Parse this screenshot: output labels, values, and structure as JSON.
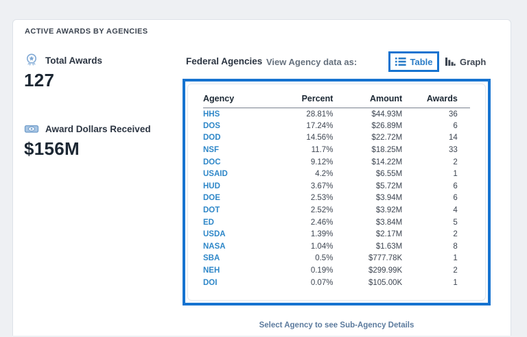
{
  "page": {
    "section_title": "ACTIVE AWARDS BY AGENCIES",
    "hint": "Select Agency to see Sub-Agency Details"
  },
  "stats": {
    "total_awards": {
      "label": "Total Awards",
      "value": "127",
      "icon": "medal-icon"
    },
    "award_dollars": {
      "label": "Award Dollars Received",
      "value": "$156M",
      "icon": "money-icon"
    }
  },
  "panel": {
    "title": "Federal Agencies",
    "view_label": "View Agency data as:",
    "view_options": [
      {
        "label": "Table",
        "icon": "list-icon",
        "selected": true
      },
      {
        "label": "Graph",
        "icon": "bar-chart-icon",
        "selected": false
      }
    ]
  },
  "colors": {
    "accent_blue": "#1673d0",
    "link_blue": "#2e87c8",
    "dark_text": "#2b3441",
    "muted_text": "#65707d",
    "hint_text": "#5b7a9d",
    "page_bg": "#eef0f3"
  },
  "chart_data": {
    "type": "table",
    "columns": [
      "Agency",
      "Percent",
      "Amount",
      "Awards"
    ],
    "rows": [
      {
        "agency": "HHS",
        "percent": "28.81%",
        "amount": "$44.93M",
        "awards": "36"
      },
      {
        "agency": "DOS",
        "percent": "17.24%",
        "amount": "$26.89M",
        "awards": "6"
      },
      {
        "agency": "DOD",
        "percent": "14.56%",
        "amount": "$22.72M",
        "awards": "14"
      },
      {
        "agency": "NSF",
        "percent": "11.7%",
        "amount": "$18.25M",
        "awards": "33"
      },
      {
        "agency": "DOC",
        "percent": "9.12%",
        "amount": "$14.22M",
        "awards": "2"
      },
      {
        "agency": "USAID",
        "percent": "4.2%",
        "amount": "$6.55M",
        "awards": "1"
      },
      {
        "agency": "HUD",
        "percent": "3.67%",
        "amount": "$5.72M",
        "awards": "6"
      },
      {
        "agency": "DOE",
        "percent": "2.53%",
        "amount": "$3.94M",
        "awards": "6"
      },
      {
        "agency": "DOT",
        "percent": "2.52%",
        "amount": "$3.92M",
        "awards": "4"
      },
      {
        "agency": "ED",
        "percent": "2.46%",
        "amount": "$3.84M",
        "awards": "5"
      },
      {
        "agency": "USDA",
        "percent": "1.39%",
        "amount": "$2.17M",
        "awards": "2"
      },
      {
        "agency": "NASA",
        "percent": "1.04%",
        "amount": "$1.63M",
        "awards": "8"
      },
      {
        "agency": "SBA",
        "percent": "0.5%",
        "amount": "$777.78K",
        "awards": "1"
      },
      {
        "agency": "NEH",
        "percent": "0.19%",
        "amount": "$299.99K",
        "awards": "2"
      },
      {
        "agency": "DOI",
        "percent": "0.07%",
        "amount": "$105.00K",
        "awards": "1"
      }
    ]
  }
}
